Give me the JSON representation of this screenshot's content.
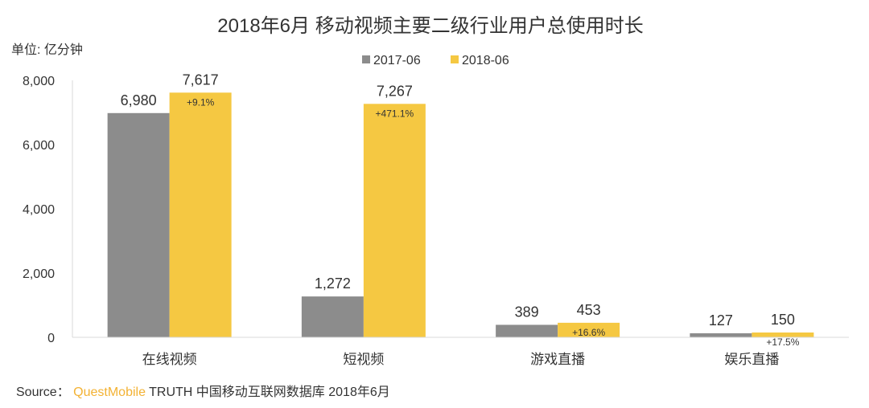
{
  "chart_data": {
    "type": "bar",
    "title": "2018年6月 移动视频主要二级行业用户总使用时长",
    "unit_label": "单位: 亿分钟",
    "categories": [
      "在线视频",
      "短视频",
      "游戏直播",
      "娱乐直播"
    ],
    "series": [
      {
        "name": "2017-06",
        "color": "#8c8c8c",
        "values": [
          6980,
          1272,
          389,
          127
        ],
        "labels": [
          "6,980",
          "1,272",
          "389",
          "127"
        ]
      },
      {
        "name": "2018-06",
        "color": "#f5c842",
        "values": [
          7617,
          7267,
          453,
          150
        ],
        "labels": [
          "7,617",
          "7,267",
          "453",
          "150"
        ]
      }
    ],
    "growth_labels": [
      "+9.1%",
      "+471.1%",
      "+16.6%",
      "+17.5%"
    ],
    "ylim": [
      0,
      8000
    ],
    "yticks": [
      0,
      2000,
      4000,
      6000,
      8000
    ],
    "ytick_labels": [
      "0",
      "2,000",
      "4,000",
      "6,000",
      "8,000"
    ],
    "legend_position": "top-center",
    "grid": false
  },
  "source": {
    "prefix": "Source：",
    "brand": "QuestMobile",
    "rest": "TRUTH 中国移动互联网数据库 2018年6月"
  }
}
